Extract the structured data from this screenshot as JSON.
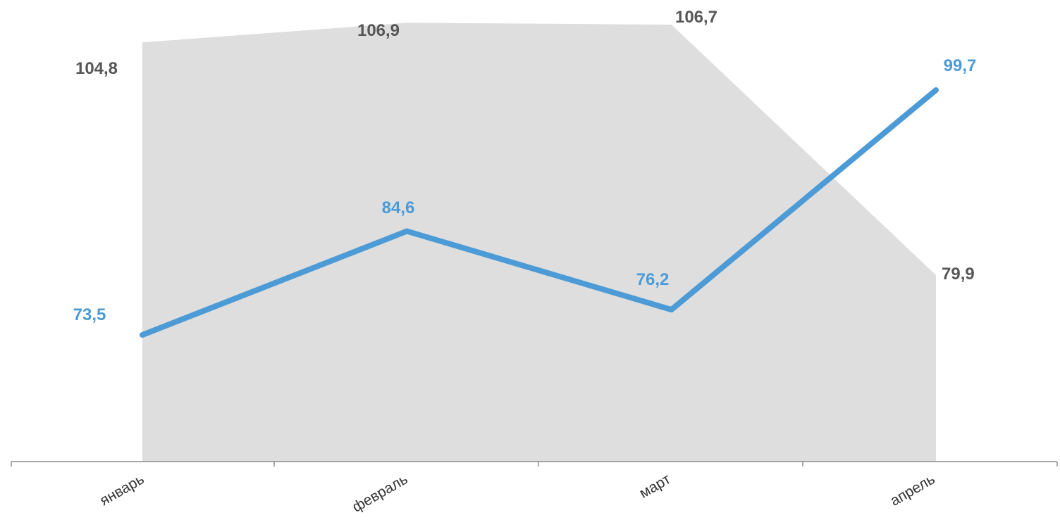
{
  "chart_data": {
    "type": "area",
    "categories": [
      "январь",
      "февраль",
      "март",
      "апрель"
    ],
    "series": [
      {
        "type": "area",
        "values": [
          104.8,
          106.9,
          106.7,
          79.9
        ],
        "labels": [
          "104,8",
          "106,9",
          "106,7",
          "79,9"
        ],
        "color": "#dedede",
        "label_color": "#575757"
      },
      {
        "type": "line",
        "values": [
          73.5,
          84.6,
          76.2,
          99.7
        ],
        "labels": [
          "73,5",
          "84,6",
          "76,2",
          "99,7"
        ],
        "color": "#4d9bd6",
        "label_color": "#4d9bd6"
      }
    ],
    "title": "",
    "xlabel": "",
    "ylabel": "",
    "grid": false,
    "legend": "none"
  }
}
